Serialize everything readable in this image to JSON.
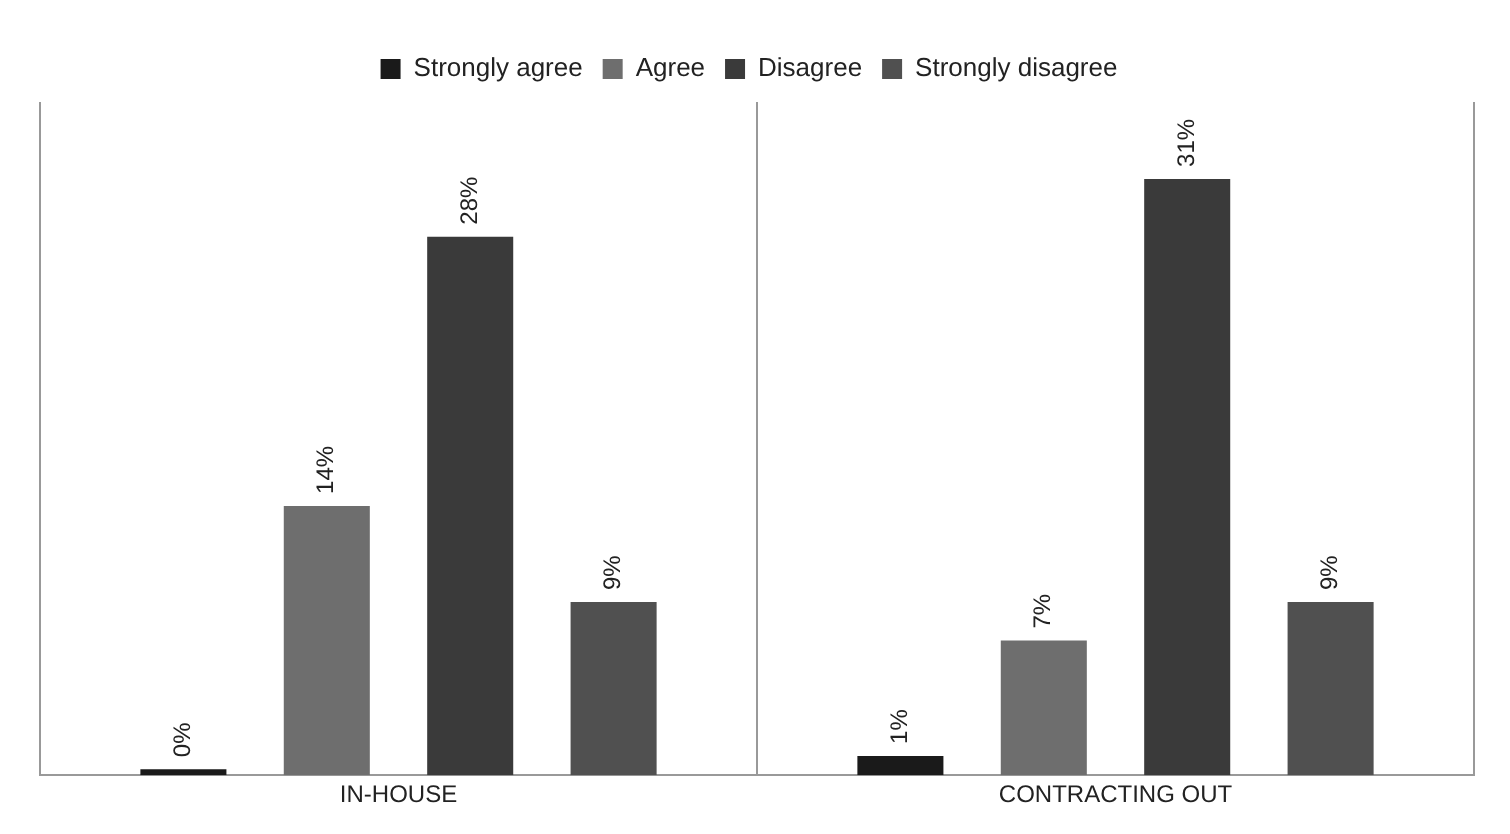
{
  "chart_data": {
    "type": "bar",
    "categories": [
      "IN-HOUSE",
      "CONTRACTING OUT"
    ],
    "series": [
      {
        "name": "Strongly agree",
        "color": "#1a1a1a",
        "values": [
          0,
          1
        ],
        "value_labels": [
          "0%",
          "1%"
        ]
      },
      {
        "name": "Agree",
        "color": "#6e6e6e",
        "values": [
          14,
          7
        ],
        "value_labels": [
          "14%",
          "7%"
        ]
      },
      {
        "name": "Disagree",
        "color": "#3a3a3a",
        "values": [
          28,
          31
        ],
        "value_labels": [
          "28%",
          "31%"
        ]
      },
      {
        "name": "Strongly disagree",
        "color": "#505050",
        "values": [
          9,
          9
        ],
        "value_labels": [
          "9%",
          "9%"
        ]
      }
    ],
    "legend": "top",
    "grid": "x",
    "tick_labels": "x"
  }
}
